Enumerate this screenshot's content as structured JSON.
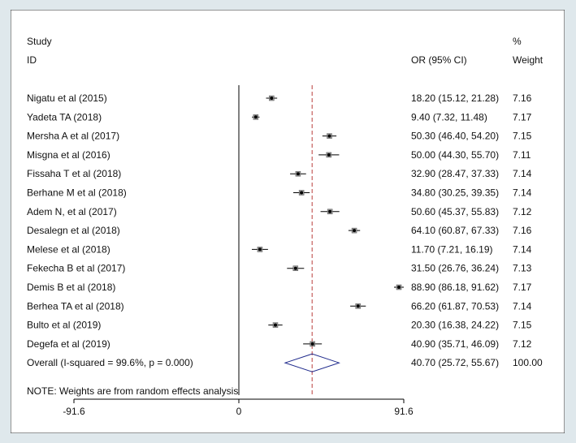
{
  "chart_data": {
    "type": "forest",
    "header": {
      "study_line1": "Study",
      "study_line2": "ID",
      "ci_header": "OR (95% CI)",
      "weight_line1": "%",
      "weight_line2": "Weight"
    },
    "studies": [
      {
        "label": "Nigatu et al (2015)",
        "or": 18.2,
        "lo": 15.12,
        "hi": 21.28,
        "ci_text": "18.20 (15.12, 21.28)",
        "weight": "7.16"
      },
      {
        "label": "Yadeta TA (2018)",
        "or": 9.4,
        "lo": 7.32,
        "hi": 11.48,
        "ci_text": "9.40 (7.32, 11.48)",
        "weight": "7.17"
      },
      {
        "label": "Mersha A et al (2017)",
        "or": 50.3,
        "lo": 46.4,
        "hi": 54.2,
        "ci_text": "50.30 (46.40, 54.20)",
        "weight": "7.15"
      },
      {
        "label": "Misgna et al (2016)",
        "or": 50.0,
        "lo": 44.3,
        "hi": 55.7,
        "ci_text": "50.00 (44.30, 55.70)",
        "weight": "7.11"
      },
      {
        "label": "Fissaha T et al (2018)",
        "or": 32.9,
        "lo": 28.47,
        "hi": 37.33,
        "ci_text": "32.90 (28.47, 37.33)",
        "weight": "7.14"
      },
      {
        "label": "Berhane M et al (2018)",
        "or": 34.8,
        "lo": 30.25,
        "hi": 39.35,
        "ci_text": "34.80 (30.25, 39.35)",
        "weight": "7.14"
      },
      {
        "label": "Adem N, et al (2017)",
        "or": 50.6,
        "lo": 45.37,
        "hi": 55.83,
        "ci_text": "50.60 (45.37, 55.83)",
        "weight": "7.12"
      },
      {
        "label": "Desalegn et al (2018)",
        "or": 64.1,
        "lo": 60.87,
        "hi": 67.33,
        "ci_text": "64.10 (60.87, 67.33)",
        "weight": "7.16"
      },
      {
        "label": "Melese et al (2018)",
        "or": 11.7,
        "lo": 7.21,
        "hi": 16.19,
        "ci_text": "11.70 (7.21, 16.19)",
        "weight": "7.14"
      },
      {
        "label": "Fekecha B et al (2017)",
        "or": 31.5,
        "lo": 26.76,
        "hi": 36.24,
        "ci_text": "31.50 (26.76, 36.24)",
        "weight": "7.13"
      },
      {
        "label": "Demis B et al (2018)",
        "or": 88.9,
        "lo": 86.18,
        "hi": 91.62,
        "ci_text": "88.90 (86.18, 91.62)",
        "weight": "7.17"
      },
      {
        "label": "Berhea TA et al (2018)",
        "or": 66.2,
        "lo": 61.87,
        "hi": 70.53,
        "ci_text": "66.20 (61.87, 70.53)",
        "weight": "7.14"
      },
      {
        "label": "Bulto et al (2019)",
        "or": 20.3,
        "lo": 16.38,
        "hi": 24.22,
        "ci_text": "20.30 (16.38, 24.22)",
        "weight": "7.15"
      },
      {
        "label": "Degefa et al (2019)",
        "or": 40.9,
        "lo": 35.71,
        "hi": 46.09,
        "ci_text": "40.90 (35.71, 46.09)",
        "weight": "7.12"
      }
    ],
    "overall": {
      "label": "Overall  (I-squared = 99.6%, p = 0.000)",
      "or": 40.7,
      "lo": 25.72,
      "hi": 55.67,
      "ci_text": "40.70 (25.72, 55.67)",
      "weight": "100.00"
    },
    "note": "NOTE: Weights are from random effects analysis",
    "x_ticks": [
      {
        "value": -91.6,
        "label": "-91.6"
      },
      {
        "value": 0,
        "label": "0"
      },
      {
        "value": 91.6,
        "label": "91.6"
      }
    ],
    "xlim": [
      -91.6,
      91.6
    ],
    "colors": {
      "point": "#000000",
      "reference_line": "#c0504d",
      "diamond": "#1f2a8c",
      "panel_border": "#2a2a2a",
      "background": "#dfe8ec"
    }
  }
}
